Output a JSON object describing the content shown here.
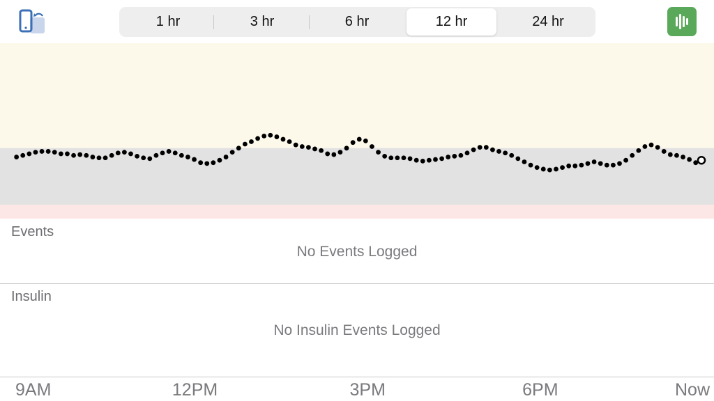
{
  "toolbar": {
    "left_icon": "phone-sync-icon",
    "right_icon": "waveform-icon",
    "right_color": "#5aa95a"
  },
  "ranges": {
    "options": [
      "1 hr",
      "3 hr",
      "6 hr",
      "12 hr",
      "24 hr"
    ],
    "selected": "12 hr"
  },
  "chart_data": {
    "type": "scatter",
    "colors": {
      "in_range_band": "#fcf9ea",
      "high_low_band": "#e2e2e2",
      "points": "#000000",
      "low_band": "#fde6e6"
    },
    "x_ticks": [
      "9AM",
      "12PM",
      "3PM",
      "6PM",
      "Now"
    ],
    "x_tick_hours": [
      0,
      3,
      6,
      9,
      11.8
    ],
    "xlim": [
      -0.35,
      11.8
    ],
    "ylim": [
      0,
      20
    ],
    "band_level": 7,
    "values": [
      5.9,
      6.1,
      6.3,
      6.5,
      6.6,
      6.6,
      6.5,
      6.3,
      6.3,
      6.1,
      6.2,
      6.1,
      5.9,
      5.8,
      5.8,
      6.1,
      6.4,
      6.5,
      6.3,
      6.0,
      5.8,
      5.7,
      6.1,
      6.4,
      6.6,
      6.4,
      6.1,
      5.9,
      5.6,
      5.2,
      5.1,
      5.2,
      5.5,
      5.9,
      6.5,
      7.0,
      7.5,
      7.8,
      8.2,
      8.5,
      8.6,
      8.4,
      8.1,
      7.8,
      7.4,
      7.2,
      7.1,
      6.9,
      6.7,
      6.3,
      6.2,
      6.5,
      7.0,
      7.7,
      8.1,
      7.9,
      7.2,
      6.5,
      6.0,
      5.8,
      5.8,
      5.8,
      5.7,
      5.5,
      5.4,
      5.5,
      5.6,
      5.7,
      5.9,
      6.0,
      6.1,
      6.4,
      6.8,
      7.1,
      7.1,
      6.8,
      6.6,
      6.4,
      6.1,
      5.7,
      5.3,
      4.9,
      4.6,
      4.4,
      4.3,
      4.4,
      4.6,
      4.8,
      4.8,
      4.9,
      5.1,
      5.3,
      5.1,
      4.9,
      4.9,
      5.1,
      5.5,
      6.1,
      6.7,
      7.2,
      7.4,
      7.1,
      6.6,
      6.2,
      6.1,
      5.9,
      5.6,
      5.2
    ],
    "current_value": 5.5
  },
  "events": {
    "title": "Events",
    "empty": "No Events Logged"
  },
  "insulin": {
    "title": "Insulin",
    "empty": "No Insulin Events Logged"
  }
}
